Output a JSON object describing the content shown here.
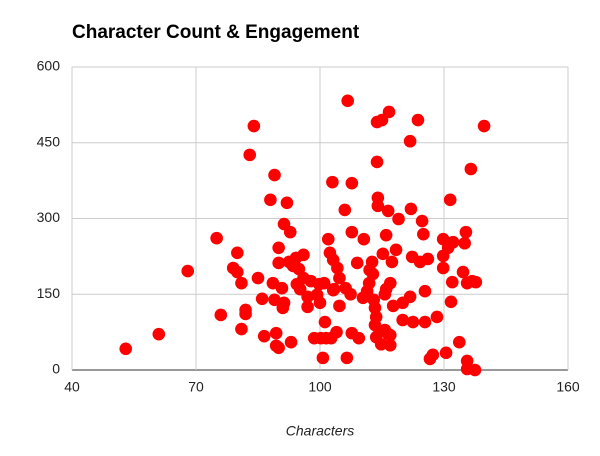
{
  "chart_data": {
    "type": "scatter",
    "title": "Character Count & Engagement",
    "x_label": "Characters",
    "x": [
      53,
      61,
      68,
      75,
      76,
      80,
      79,
      80,
      81,
      81,
      82,
      82,
      83,
      84,
      85,
      86,
      86.5,
      88,
      89,
      88.6,
      89,
      89.4,
      89.4,
      90,
      90,
      90,
      90.8,
      91,
      91.3,
      91.3,
      92,
      92.5,
      92.8,
      93,
      93.5,
      94.2,
      94.4,
      94.9,
      95.2,
      96,
      96,
      97,
      97,
      97.8,
      98.6,
      99.3,
      99.8,
      100,
      100.2,
      100.7,
      101,
      101.2,
      101.5,
      102,
      102.4,
      102.7,
      103,
      103.2,
      103.2,
      103.4,
      104,
      104.2,
      104.7,
      104.7,
      106,
      106.2,
      106.5,
      106.7,
      107.4,
      107.7,
      107.7,
      107.7,
      109,
      109.4,
      110.4,
      110.6,
      111.4,
      111.9,
      112,
      112.6,
      112.8,
      113,
      113.3,
      113.3,
      113.6,
      113.6,
      113.8,
      113.8,
      114,
      114,
      114.5,
      114.8,
      115,
      115.2,
      115.7,
      115.7,
      116,
      116,
      116.5,
      116.5,
      116.7,
      117,
      117,
      117,
      117.4,
      117.7,
      118.4,
      119,
      120,
      120,
      121.8,
      121.8,
      122,
      122.3,
      122.5,
      123.7,
      124.2,
      124.7,
      125,
      125.4,
      125.4,
      126.1,
      126.6,
      127.3,
      128.3,
      129.8,
      129.8,
      129.8,
      130.5,
      131,
      131.5,
      131.7,
      132,
      132.2,
      133.7,
      134.6,
      135,
      135.3,
      135.6,
      135.6,
      135.6,
      136.5,
      136.8,
      137.5,
      137.7,
      139.7
    ],
    "y": [
      42,
      71,
      196,
      261,
      109,
      232,
      202,
      194,
      172,
      81,
      119,
      111,
      426,
      483,
      182,
      141,
      67,
      337,
      386,
      172,
      139,
      73,
      48,
      44,
      242,
      212,
      162,
      123,
      133,
      289,
      331,
      214,
      273,
      55,
      206,
      222,
      170,
      200,
      160,
      228,
      182,
      145,
      125,
      176,
      63,
      149,
      170,
      133,
      63,
      24,
      172,
      95,
      63,
      259,
      232,
      63,
      372,
      218,
      158,
      160,
      75,
      202,
      182,
      127,
      317,
      162,
      24,
      533,
      150,
      273,
      370,
      73,
      212,
      63,
      143,
      259,
      156,
      172,
      198,
      214,
      190,
      139,
      123,
      89,
      105,
      65,
      412,
      491,
      325,
      341,
      77,
      51,
      495,
      230,
      150,
      79,
      160,
      267,
      315,
      71,
      511,
      172,
      69,
      49,
      214,
      127,
      238,
      299,
      133,
      99,
      453,
      145,
      319,
      224,
      95,
      495,
      214,
      295,
      269,
      95,
      156,
      220,
      22,
      30,
      105,
      259,
      226,
      202,
      34,
      242,
      337,
      135,
      174,
      253,
      55,
      194,
      251,
      273,
      18,
      172,
      2,
      398,
      176,
      0,
      174,
      483
    ],
    "color": "#ff0000",
    "xlim": [
      40,
      160
    ],
    "xticks": [
      40,
      70,
      100,
      130,
      160
    ],
    "ylim": [
      0,
      600
    ],
    "yticks": [
      0,
      150,
      300,
      450,
      600
    ],
    "grid": true
  }
}
